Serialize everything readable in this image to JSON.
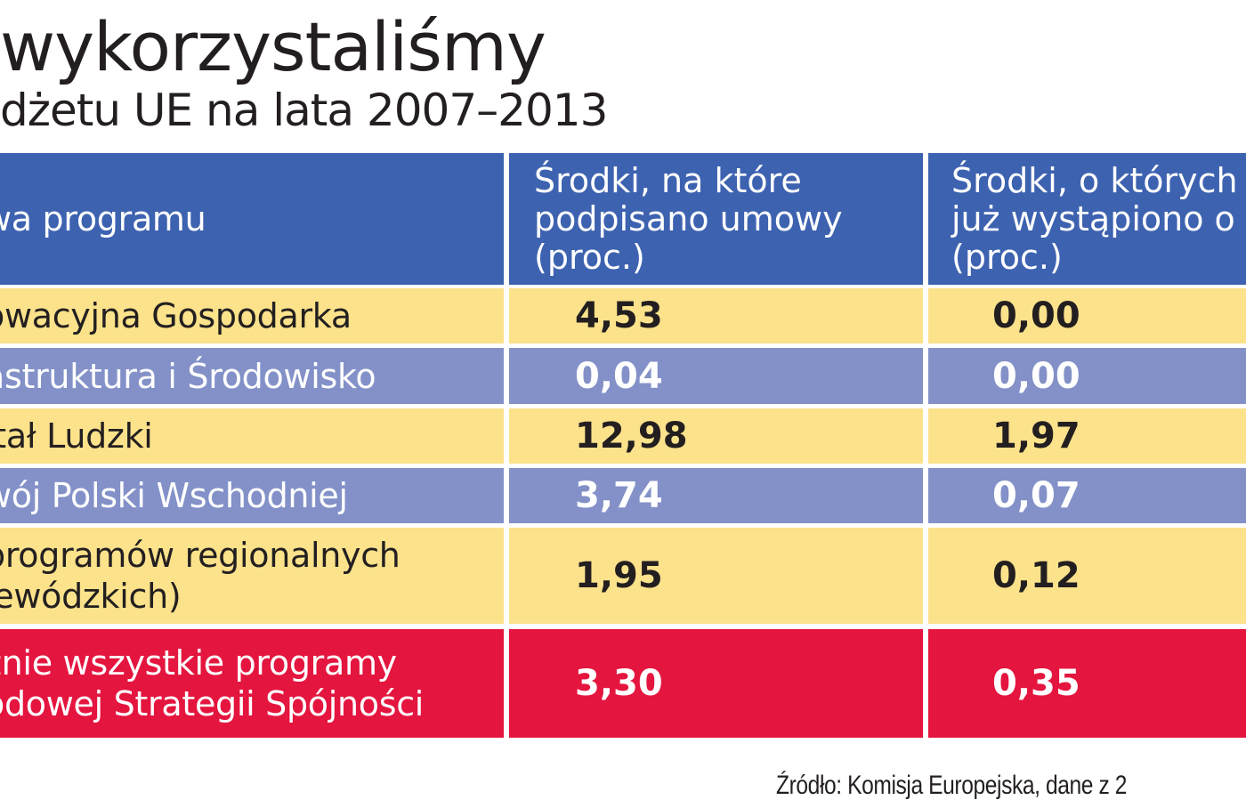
{
  "title": "wykorzystaliśmy",
  "subtitle": "dżetu UE na lata 2007–2013",
  "chart_data": {
    "type": "table",
    "columns": [
      "wa programu",
      "Środki, na które\npodpisano umowy\n(proc.)",
      "Środki, o których\njuż wystąpiono o\n(proc.)"
    ],
    "rows": [
      {
        "name": "owacyjna Gospodarka",
        "signed": "4,53",
        "requested": "0,00",
        "style": "yellow"
      },
      {
        "name": "astruktura i Środowisko",
        "signed": "0,04",
        "requested": "0,00",
        "style": "blue"
      },
      {
        "name": "itał Ludzki",
        "signed": "12,98",
        "requested": "1,97",
        "style": "yellow"
      },
      {
        "name": "wój Polski Wschodniej",
        "signed": "3,74",
        "requested": "0,07",
        "style": "blue"
      },
      {
        "name": "programów regionalnych\njewódzkich)",
        "signed": "1,95",
        "requested": "0,12",
        "style": "yellow"
      },
      {
        "name": "znie wszystkie programy\nodowej Strategii Spójności",
        "signed": "3,30",
        "requested": "0,35",
        "style": "red"
      }
    ]
  },
  "source": "Źródło: Komisja Europejska, dane z 2"
}
